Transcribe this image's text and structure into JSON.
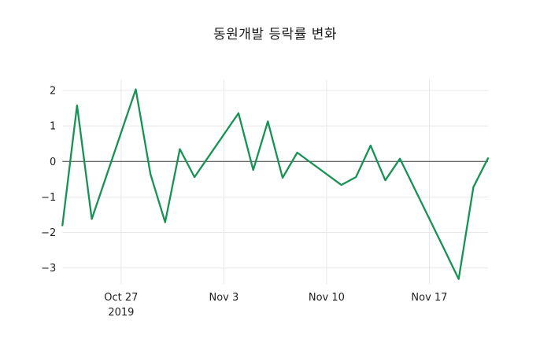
{
  "chart_data": {
    "type": "line",
    "title": "동원개발 등락률 변화",
    "series": [
      {
        "name": "등락률",
        "x": [
          "2019-10-23",
          "2019-10-24",
          "2019-10-25",
          "2019-10-28",
          "2019-10-29",
          "2019-10-30",
          "2019-10-31",
          "2019-11-01",
          "2019-11-04",
          "2019-11-05",
          "2019-11-06",
          "2019-11-07",
          "2019-11-08",
          "2019-11-11",
          "2019-11-12",
          "2019-11-13",
          "2019-11-14",
          "2019-11-15",
          "2019-11-18",
          "2019-11-19",
          "2019-11-20",
          "2019-11-21"
        ],
        "values": [
          -1.8,
          1.58,
          -1.62,
          2.03,
          -0.36,
          -1.71,
          0.35,
          -0.44,
          1.36,
          -0.24,
          1.13,
          -0.46,
          0.25,
          -0.66,
          -0.44,
          0.45,
          -0.53,
          0.08,
          -2.46,
          -3.31,
          -0.72,
          0.09
        ]
      }
    ],
    "x_ticks": [
      {
        "date": "2019-10-27",
        "label": "Oct 27",
        "sublabel": "2019"
      },
      {
        "date": "2019-11-03",
        "label": "Nov 3",
        "sublabel": ""
      },
      {
        "date": "2019-11-10",
        "label": "Nov 10",
        "sublabel": ""
      },
      {
        "date": "2019-11-17",
        "label": "Nov 17",
        "sublabel": ""
      }
    ],
    "y_ticks": [
      {
        "value": 2,
        "label": "2"
      },
      {
        "value": 1,
        "label": "1"
      },
      {
        "value": 0,
        "label": "0"
      },
      {
        "value": -1,
        "label": "−1"
      },
      {
        "value": -2,
        "label": "−2"
      },
      {
        "value": -3,
        "label": "−3"
      }
    ],
    "xlim": [
      "2019-10-23",
      "2019-11-21"
    ],
    "ylim": [
      -3.45,
      2.31
    ],
    "xlabel": "",
    "ylabel": "",
    "grid": true,
    "legend": false,
    "zero_line": true,
    "colors": {
      "line": "#169354",
      "grid": "#e8e8e8",
      "zero_line": "#3a3a3a",
      "text": "#1f1f1f",
      "background": "#ffffff"
    }
  }
}
